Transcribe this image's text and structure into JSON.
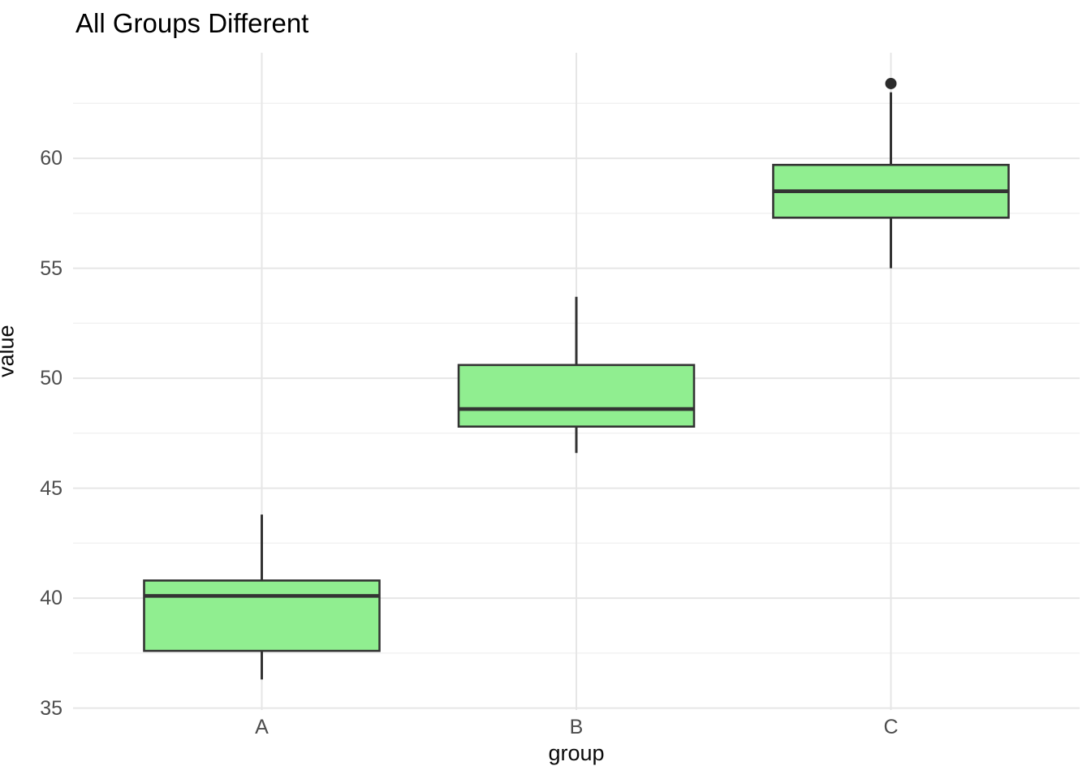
{
  "title": "All Groups Different",
  "axes": {
    "x_title": "group",
    "y_title": "value",
    "x_tick_labels": [
      "A",
      "B",
      "C"
    ],
    "y_tick_labels": [
      "35",
      "40",
      "45",
      "50",
      "55",
      "60"
    ]
  },
  "colors": {
    "background": "#ffffff",
    "box_fill": "#90ee90",
    "box_stroke": "#333333",
    "median_stroke": "#333333",
    "whisker_stroke": "#333333",
    "outlier_fill": "#2b2b2b",
    "grid_major": "#e6e6e6",
    "grid_minor": "#f1f1f1",
    "tick_label": "#4d4d4d",
    "axis_title": "#0a0a0a",
    "title": "#000000"
  },
  "chart_data": {
    "type": "boxplot",
    "title": "All Groups Different",
    "xlabel": "group",
    "ylabel": "value",
    "categories": [
      "A",
      "B",
      "C"
    ],
    "ylim": [
      35.0,
      64.8
    ],
    "y_major_ticks": [
      35,
      40,
      45,
      50,
      55,
      60
    ],
    "y_minor_gridlines": [
      37.5,
      42.5,
      47.5,
      52.5,
      57.5,
      62.5
    ],
    "grid": true,
    "legend": "none",
    "series": [
      {
        "group": "A",
        "whisker_low": 36.3,
        "q1": 37.6,
        "median": 40.1,
        "q3": 40.8,
        "whisker_high": 43.8,
        "outliers": []
      },
      {
        "group": "B",
        "whisker_low": 46.6,
        "q1": 47.8,
        "median": 48.6,
        "q3": 50.6,
        "whisker_high": 53.7,
        "outliers": []
      },
      {
        "group": "C",
        "whisker_low": 55.0,
        "q1": 57.3,
        "median": 58.5,
        "q3": 59.7,
        "whisker_high": 63.0,
        "outliers": [
          63.4
        ]
      }
    ]
  }
}
